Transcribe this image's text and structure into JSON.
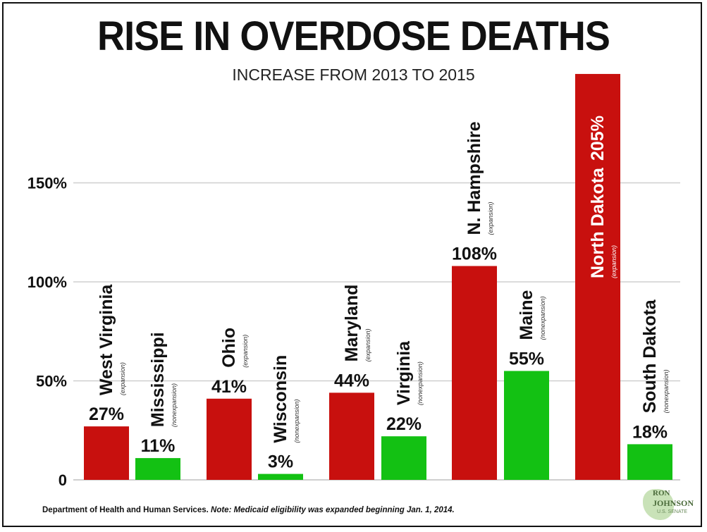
{
  "title": "RISE IN OVERDOSE DEATHS",
  "subtitle": "INCREASE FROM 2013 TO 2015",
  "footer": {
    "source": "Department of Health and Human Services.",
    "note": "Note: Medicaid eligibility was expanded beginning Jan. 1, 2014."
  },
  "logo": {
    "line1": "RON",
    "line2": "JOHNSON",
    "line3": "U.S. SENATE"
  },
  "colors": {
    "expansion": "#c8100e",
    "nonexpansion": "#13c113",
    "grid": "#cfcfcf"
  },
  "chart_data": {
    "type": "bar",
    "title": "RISE IN OVERDOSE DEATHS",
    "subtitle": "INCREASE FROM 2013 TO 2015",
    "ylim": [
      0,
      205
    ],
    "yticks": [
      {
        "value": 0,
        "label": "0"
      },
      {
        "value": 50,
        "label": "50%"
      },
      {
        "value": 100,
        "label": "100%"
      },
      {
        "value": 150,
        "label": "150%"
      }
    ],
    "grid": true,
    "bars": [
      {
        "name": "West Virginia",
        "status": "(expansion)",
        "value": 27,
        "label": "27%",
        "group": "expansion"
      },
      {
        "name": "Mississippi",
        "status": "(nonexpansion)",
        "value": 11,
        "label": "11%",
        "group": "nonexpansion"
      },
      {
        "name": "Ohio",
        "status": "(expansion)",
        "value": 41,
        "label": "41%",
        "group": "expansion"
      },
      {
        "name": "Wisconsin",
        "status": "(nonexpansion)",
        "value": 3,
        "label": "3%",
        "group": "nonexpansion"
      },
      {
        "name": "Maryland",
        "status": "(expansion)",
        "value": 44,
        "label": "44%",
        "group": "expansion"
      },
      {
        "name": "Virginia",
        "status": "(nonexpansion)",
        "value": 22,
        "label": "22%",
        "group": "nonexpansion"
      },
      {
        "name": "N. Hampshire",
        "status": "(expansion)",
        "value": 108,
        "label": "108%",
        "group": "expansion"
      },
      {
        "name": "Maine",
        "status": "(nonexpansion)",
        "value": 55,
        "label": "55%",
        "group": "nonexpansion"
      },
      {
        "name": "North Dakota",
        "status": "(expansion)",
        "value": 205,
        "label": "205%",
        "group": "expansion"
      },
      {
        "name": "South Dakota",
        "status": "(nonexpansion)",
        "value": 18,
        "label": "18%",
        "group": "nonexpansion"
      }
    ]
  }
}
